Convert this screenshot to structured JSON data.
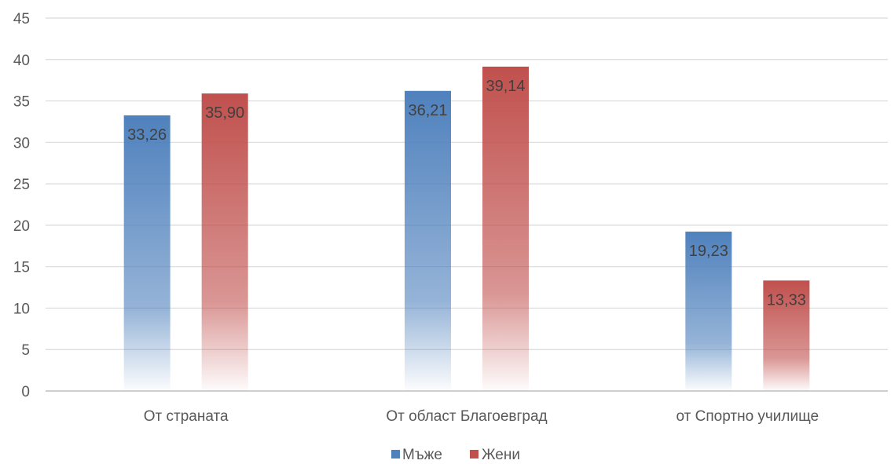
{
  "chart_data": {
    "type": "bar",
    "categories": [
      "От страната",
      "От област Благоевград",
      "от Спортно училище"
    ],
    "series": [
      {
        "name": "Мъже",
        "values": [
          33.26,
          36.21,
          19.23
        ],
        "labels": [
          "33,26",
          "36,21",
          "19,23"
        ],
        "color": "#4F81BD"
      },
      {
        "name": "Жени",
        "values": [
          35.9,
          39.14,
          13.33
        ],
        "labels": [
          "35,90",
          "39,14",
          "13,33"
        ],
        "color": "#C0504D"
      }
    ],
    "ylim": [
      0,
      45
    ],
    "yticks": [
      "0",
      "5",
      "10",
      "15",
      "20",
      "25",
      "30",
      "35",
      "40",
      "45"
    ],
    "ytick_values": [
      0,
      5,
      10,
      15,
      20,
      25,
      30,
      35,
      40,
      45
    ],
    "grid": true,
    "legend_position": "bottom",
    "title": "",
    "xlabel": "",
    "ylabel": ""
  }
}
